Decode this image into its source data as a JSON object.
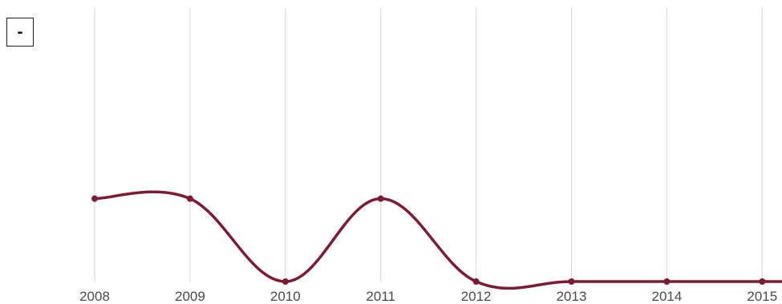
{
  "controls": {
    "zoom_out_label": "-"
  },
  "colors": {
    "line": "#7d1a35",
    "grid": "#d6d6d6",
    "tick_text": "#4a4a4a"
  },
  "chart_data": {
    "type": "line",
    "title": "",
    "xlabel": "",
    "ylabel": "",
    "x": [
      "2008",
      "2009",
      "2010",
      "2011",
      "2012",
      "2013",
      "2014",
      "2015"
    ],
    "series": [
      {
        "values": [
          1,
          1,
          0,
          1,
          0,
          0,
          0,
          0
        ]
      }
    ],
    "ylim": [
      0,
      3.3
    ],
    "grid": "vertical",
    "legend": "none",
    "smooth": true
  }
}
